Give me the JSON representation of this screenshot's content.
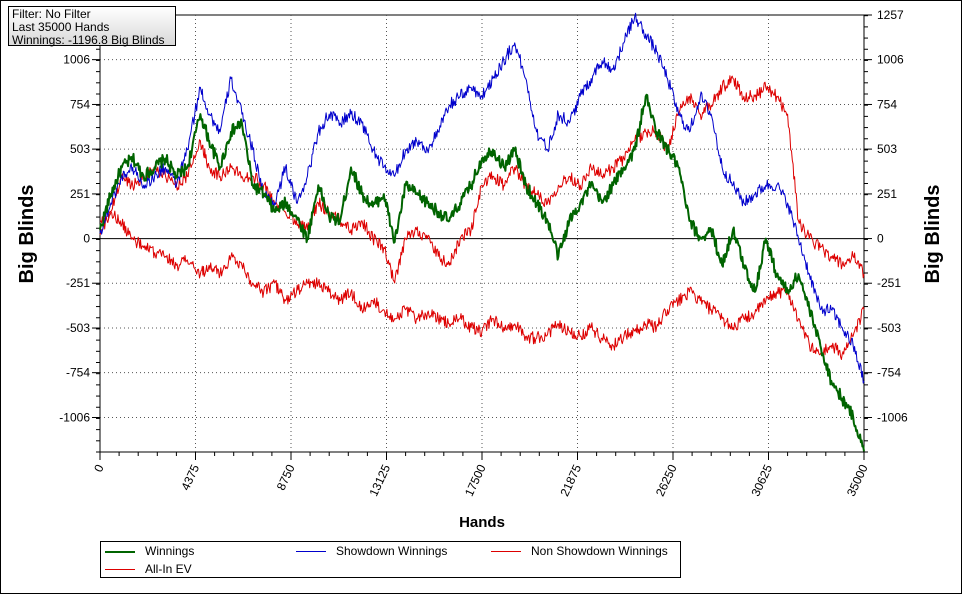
{
  "info": {
    "filter": "Filter: No Filter",
    "hands": "Last  35000 Hands",
    "winnings": "Winnings: -1196.8 Big Blinds"
  },
  "chart_data": {
    "type": "line",
    "xlabel": "Hands",
    "ylabel": "Big Blinds",
    "xlim": [
      0,
      35000
    ],
    "ylim": [
      -1200,
      1257
    ],
    "x_ticks": [
      0,
      4375,
      8750,
      13125,
      17500,
      21875,
      26250,
      30625,
      35000
    ],
    "y_ticks": [
      1257,
      1006,
      754,
      503,
      251,
      0,
      -251,
      -503,
      -754,
      -1006
    ],
    "y_tick_labels_left": [
      "1006",
      "754",
      "503",
      "251",
      "0",
      "-251",
      "-503",
      "-754",
      "-1006"
    ],
    "y_tick_labels_right": [
      "1257",
      "1006",
      "754",
      "503",
      "251",
      "0",
      "-251",
      "-503",
      "-754",
      "-1006"
    ],
    "grid": true,
    "legend_position": "bottom",
    "series": [
      {
        "name": "Winnings",
        "color": "#006400",
        "width": 2,
        "x": [
          0,
          500,
          1000,
          1500,
          2000,
          2500,
          3000,
          3500,
          4000,
          4600,
          5000,
          5500,
          6000,
          6500,
          7000,
          7500,
          8000,
          8500,
          9000,
          9500,
          10000,
          10500,
          11000,
          11500,
          12000,
          12500,
          13000,
          13500,
          14000,
          14500,
          15000,
          15500,
          16000,
          16500,
          17000,
          17500,
          18000,
          18500,
          19000,
          19500,
          20000,
          20500,
          21000,
          21500,
          22000,
          22500,
          23000,
          23500,
          24000,
          24500,
          25000,
          25500,
          26000,
          26500,
          27000,
          27500,
          28000,
          28500,
          29000,
          29500,
          30000,
          30500,
          31000,
          31500,
          32000,
          32500,
          33000,
          33500,
          34000,
          34500,
          35000
        ],
        "y": [
          50,
          250,
          400,
          450,
          350,
          400,
          450,
          350,
          400,
          700,
          550,
          400,
          600,
          650,
          300,
          250,
          150,
          200,
          120,
          0,
          300,
          120,
          100,
          400,
          250,
          180,
          250,
          -20,
          300,
          250,
          200,
          150,
          100,
          200,
          300,
          450,
          500,
          400,
          500,
          300,
          200,
          100,
          -100,
          100,
          200,
          300,
          200,
          300,
          400,
          500,
          800,
          600,
          500,
          400,
          100,
          0,
          50,
          -150,
          50,
          -150,
          -300,
          0,
          -200,
          -300,
          -200,
          -400,
          -600,
          -800,
          -900,
          -1000,
          -1196.8
        ]
      },
      {
        "name": "Showdown Winnings",
        "color": "#0000cc",
        "width": 1,
        "x": [
          0,
          500,
          1000,
          1500,
          2000,
          2500,
          3000,
          3500,
          4000,
          4600,
          5000,
          5500,
          6000,
          6500,
          7000,
          7500,
          8000,
          8500,
          9000,
          9500,
          10000,
          10500,
          11000,
          11500,
          12000,
          12500,
          13000,
          13500,
          14000,
          14500,
          15000,
          15500,
          16000,
          16500,
          17000,
          17500,
          18000,
          18500,
          19000,
          19500,
          20000,
          20500,
          21000,
          21500,
          22000,
          22500,
          23000,
          23500,
          24000,
          24500,
          25000,
          25500,
          26000,
          26500,
          27000,
          27500,
          28000,
          28500,
          29000,
          29500,
          30000,
          30500,
          31000,
          31500,
          32000,
          32500,
          33000,
          33500,
          34000,
          34500,
          35000
        ],
        "y": [
          30,
          200,
          350,
          400,
          300,
          350,
          400,
          300,
          500,
          850,
          700,
          600,
          900,
          700,
          500,
          250,
          200,
          400,
          200,
          350,
          600,
          700,
          650,
          700,
          650,
          500,
          400,
          350,
          500,
          550,
          500,
          600,
          750,
          800,
          850,
          800,
          900,
          1000,
          1100,
          900,
          600,
          500,
          700,
          650,
          800,
          900,
          1000,
          950,
          1100,
          1250,
          1150,
          1050,
          900,
          700,
          600,
          800,
          700,
          400,
          300,
          200,
          250,
          300,
          300,
          200,
          0,
          -200,
          -400,
          -400,
          -500,
          -600,
          -800
        ]
      },
      {
        "name": "Non Showdown Winnings",
        "color": "#dd0000",
        "width": 1,
        "x": [
          0,
          500,
          1000,
          1500,
          2000,
          2500,
          3000,
          3500,
          4000,
          4600,
          5000,
          5500,
          6000,
          6500,
          7000,
          7500,
          8000,
          8500,
          9000,
          9500,
          10000,
          10500,
          11000,
          11500,
          12000,
          12500,
          13000,
          13500,
          14000,
          14500,
          15000,
          15500,
          16000,
          16500,
          17000,
          17500,
          18000,
          18500,
          19000,
          19500,
          20000,
          20500,
          21000,
          21500,
          22000,
          22500,
          23000,
          23500,
          24000,
          24500,
          25000,
          25500,
          26000,
          26500,
          27000,
          27500,
          28000,
          28500,
          29000,
          29500,
          30000,
          30500,
          31000,
          31500,
          32000,
          32500,
          33000,
          33500,
          34000,
          34500,
          35000
        ],
        "y": [
          20,
          150,
          350,
          300,
          350,
          400,
          350,
          300,
          350,
          550,
          400,
          350,
          400,
          350,
          350,
          300,
          200,
          150,
          100,
          50,
          200,
          150,
          100,
          50,
          100,
          0,
          -50,
          -250,
          0,
          50,
          0,
          -100,
          -150,
          0,
          50,
          300,
          350,
          300,
          400,
          300,
          250,
          200,
          300,
          350,
          300,
          400,
          350,
          400,
          450,
          550,
          600,
          600,
          500,
          700,
          800,
          700,
          750,
          850,
          900,
          800,
          800,
          850,
          800,
          700,
          100,
          0,
          -50,
          -100,
          -150,
          -100,
          -200
        ]
      },
      {
        "name": "All-In EV",
        "color": "#dd0000",
        "width": 1,
        "x": [
          0,
          500,
          1000,
          1500,
          2000,
          2500,
          3000,
          3500,
          4000,
          4600,
          5000,
          5500,
          6000,
          6500,
          7000,
          7500,
          8000,
          8500,
          9000,
          9500,
          10000,
          10500,
          11000,
          11500,
          12000,
          12500,
          13000,
          13500,
          14000,
          14500,
          15000,
          15500,
          16000,
          16500,
          17000,
          17500,
          18000,
          18500,
          19000,
          19500,
          20000,
          20500,
          21000,
          21500,
          22000,
          22500,
          23000,
          23500,
          24000,
          24500,
          25000,
          25500,
          26000,
          26500,
          27000,
          27500,
          28000,
          28500,
          29000,
          29500,
          30000,
          30500,
          31000,
          31500,
          32000,
          32500,
          33000,
          33500,
          34000,
          34500,
          35000
        ],
        "y": [
          100,
          150,
          80,
          0,
          -50,
          -80,
          -100,
          -150,
          -120,
          -200,
          -150,
          -200,
          -100,
          -150,
          -250,
          -300,
          -250,
          -350,
          -300,
          -250,
          -250,
          -300,
          -350,
          -300,
          -400,
          -350,
          -400,
          -450,
          -400,
          -450,
          -420,
          -450,
          -480,
          -450,
          -500,
          -520,
          -450,
          -500,
          -480,
          -550,
          -560,
          -540,
          -480,
          -520,
          -550,
          -500,
          -560,
          -600,
          -550,
          -520,
          -480,
          -500,
          -400,
          -350,
          -300,
          -350,
          -400,
          -450,
          -500,
          -450,
          -420,
          -350,
          -300,
          -300,
          -450,
          -600,
          -650,
          -600,
          -650,
          -550,
          -400
        ]
      }
    ]
  }
}
